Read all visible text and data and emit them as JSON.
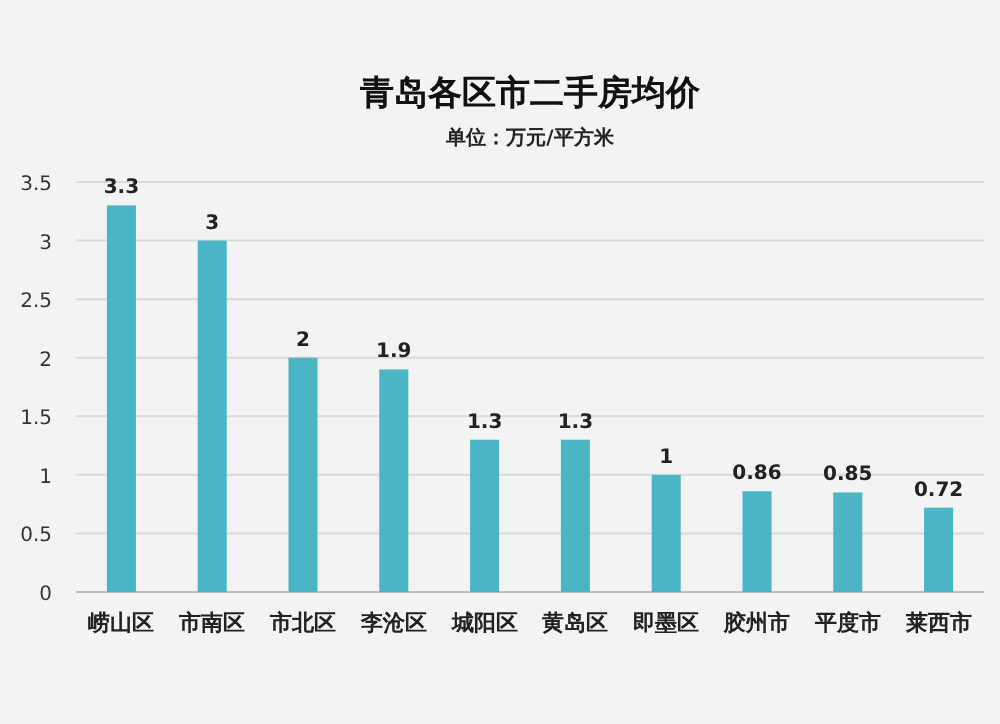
{
  "chart_data": {
    "type": "bar",
    "title": "青岛各区市二手房均价",
    "subtitle": "单位：万元/平方米",
    "categories": [
      "崂山区",
      "市南区",
      "市北区",
      "李沧区",
      "城阳区",
      "黄岛区",
      "即墨区",
      "胶州市",
      "平度市",
      "莱西市"
    ],
    "values": [
      3.3,
      3,
      2,
      1.9,
      1.3,
      1.3,
      1,
      0.86,
      0.85,
      0.72
    ],
    "color": "#4ab5c4",
    "ylim": [
      0,
      3.5
    ],
    "yticks": [
      0,
      0.5,
      1,
      1.5,
      2,
      2.5,
      3,
      3.5
    ],
    "grid": "y",
    "data_labels": true
  }
}
